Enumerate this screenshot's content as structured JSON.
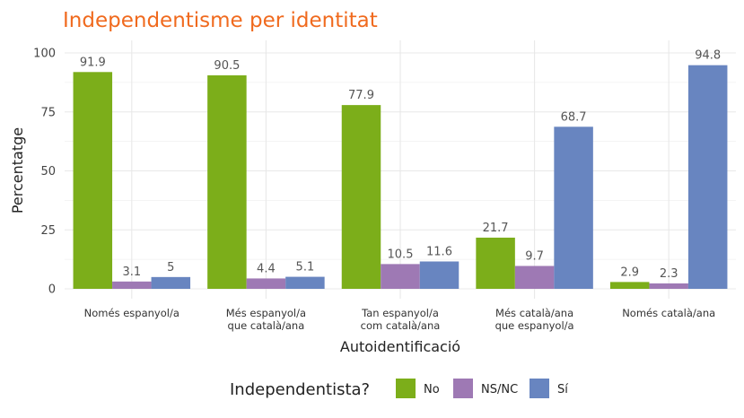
{
  "chart_data": {
    "type": "bar",
    "title": "Independentisme per identitat",
    "xlabel": "Autoidentificació",
    "ylabel": "Percentatge",
    "ylim": [
      0,
      105
    ],
    "yticks": [
      0,
      25,
      50,
      75,
      100
    ],
    "grid": true,
    "legend_position": "bottom",
    "categories": [
      [
        "Només espanyol/a"
      ],
      [
        "Més espanyol/a",
        "que català/ana"
      ],
      [
        "Tan espanyol/a",
        "com català/ana"
      ],
      [
        "Més català/ana",
        "que espanyol/a"
      ],
      [
        "Només català/ana"
      ]
    ],
    "legend_title": "Independentista?",
    "series": [
      {
        "name": "No",
        "color": "#7CAE1A",
        "values": [
          91.9,
          90.5,
          77.9,
          21.7,
          2.9
        ]
      },
      {
        "name": "NS/NC",
        "color": "#9E79B4",
        "values": [
          3.1,
          4.4,
          10.5,
          9.7,
          2.3
        ]
      },
      {
        "name": "Sí",
        "color": "#6885C0",
        "values": [
          5,
          5.1,
          11.6,
          68.7,
          94.8
        ]
      }
    ]
  },
  "colors": {
    "title": "#F06A1E",
    "grid": "#e8e8e8"
  }
}
